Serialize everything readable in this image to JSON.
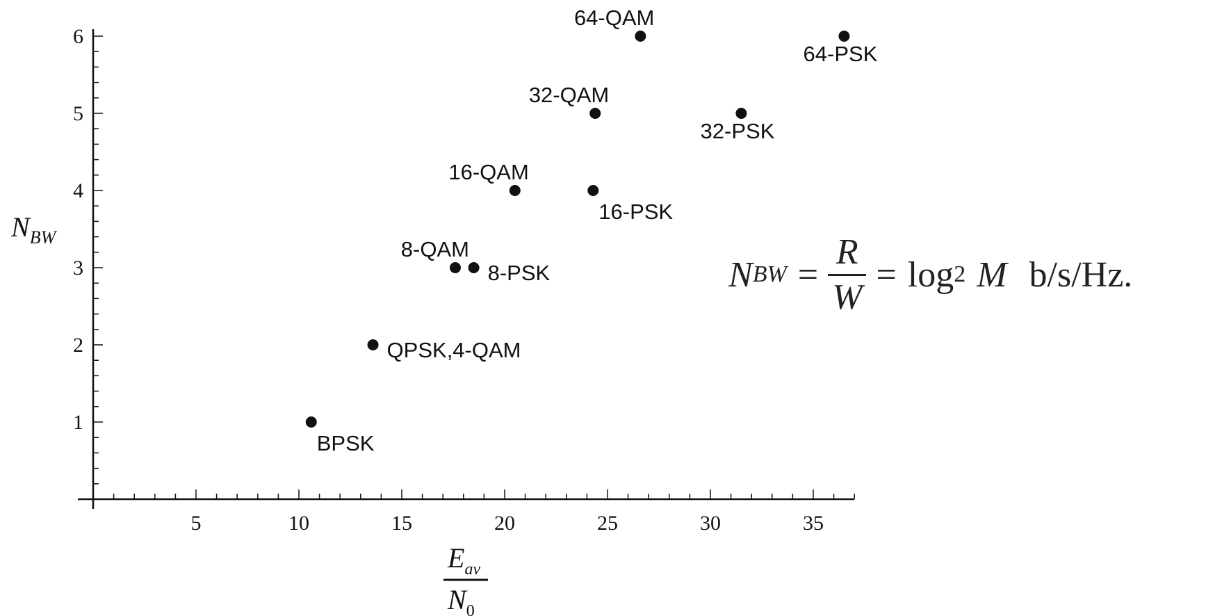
{
  "chart_data": {
    "type": "scatter",
    "xlim": [
      0,
      37
    ],
    "ylim": [
      0,
      6
    ],
    "x_ticks": [
      5,
      10,
      15,
      20,
      25,
      30,
      35
    ],
    "y_ticks": [
      1,
      2,
      3,
      4,
      5,
      6
    ],
    "ylabel": {
      "main": "N",
      "sub": "BW"
    },
    "xlabel": {
      "num_main": "E",
      "num_sub": "av",
      "den_main": "N",
      "den_sub": "0"
    },
    "grid": false,
    "points": [
      {
        "x": 10.6,
        "y": 1,
        "label": "BPSK",
        "label_pos": "below-right"
      },
      {
        "x": 13.6,
        "y": 2,
        "label": "QPSK,4-QAM",
        "label_pos": "right"
      },
      {
        "x": 17.6,
        "y": 3,
        "label": "8-QAM",
        "label_pos": "above-left"
      },
      {
        "x": 18.5,
        "y": 3,
        "label": "8-PSK",
        "label_pos": "right"
      },
      {
        "x": 20.5,
        "y": 4,
        "label": "16-QAM",
        "label_pos": "above-left"
      },
      {
        "x": 24.3,
        "y": 4,
        "label": "16-PSK",
        "label_pos": "below-right"
      },
      {
        "x": 24.4,
        "y": 5,
        "label": "32-QAM",
        "label_pos": "above-left"
      },
      {
        "x": 31.5,
        "y": 5,
        "label": "32-PSK",
        "label_pos": "below-left"
      },
      {
        "x": 26.6,
        "y": 6,
        "label": "64-QAM",
        "label_pos": "above-left"
      },
      {
        "x": 36.5,
        "y": 6,
        "label": "64-PSK",
        "label_pos": "below-left"
      }
    ]
  },
  "formula": {
    "lhs_main": "N",
    "lhs_sub": "BW",
    "eq": "=",
    "frac_num": "R",
    "frac_den": "W",
    "eq2": "=",
    "log": "log",
    "log_base": "2",
    "var": "M",
    "unit": "b/s/Hz."
  }
}
